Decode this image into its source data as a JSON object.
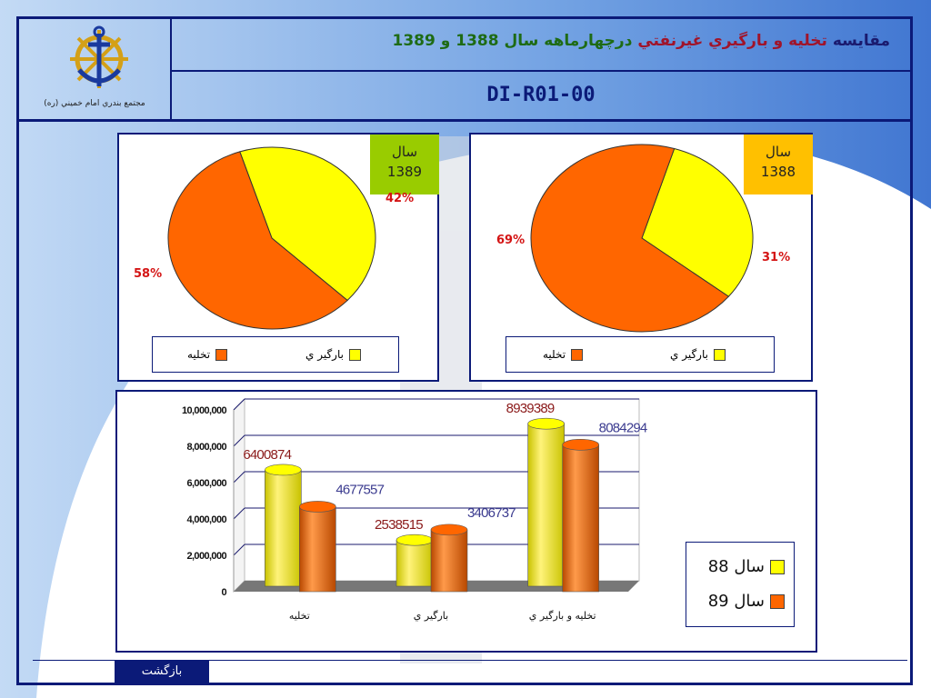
{
  "header": {
    "title_part1": "مقايسه",
    "title_part2": "تخليه و بارگيري غيرنفتي",
    "title_part3": "درچهارماهه سال 1388 و 1389",
    "doc_code": "DI-R01-00",
    "organization": "مجتمع بندري امام خميني (ره)",
    "logo_icon": "anchor-ship-wheel-icon"
  },
  "colors": {
    "frame": "#0b1a78",
    "takhlie": "#ff6600",
    "bargiri": "#ffff00",
    "badge_1389": "#99cc00",
    "badge_1388": "#ffc000",
    "pct_label": "#d41414",
    "bar_label_red": "#8b1a1a",
    "bar_label_blue": "#3b3b8f"
  },
  "pies": [
    {
      "year_label": "سال",
      "year": "1389",
      "legend": [
        "تخليه",
        "بارگير ي"
      ]
    },
    {
      "year_label": "سال",
      "year": "1388",
      "legend": [
        "تخليه",
        "بارگير ي"
      ]
    }
  ],
  "bar_legend": [
    "سال 88",
    "سال 89"
  ],
  "back_button": "بازگشت",
  "chart_data": [
    {
      "type": "pie",
      "categories": [
        "تخليه",
        "بارگيري"
      ],
      "values": [
        58,
        42
      ],
      "labels": [
        "58%",
        "42%"
      ],
      "legend": [
        "تخليه",
        "بارگير ي"
      ],
      "annotation": "سال 1389"
    },
    {
      "type": "pie",
      "categories": [
        "تخليه",
        "بارگيري"
      ],
      "values": [
        69,
        31
      ],
      "labels": [
        "69%",
        "31%"
      ],
      "legend": [
        "تخليه",
        "بارگير ي"
      ],
      "annotation": "سال 1388"
    },
    {
      "type": "bar",
      "categories": [
        "تخليه",
        "بارگير ي",
        "تخليه و بارگير ي"
      ],
      "series": [
        {
          "name": "سال 88",
          "values": [
            6400874,
            2538515,
            8939389
          ],
          "labels": [
            "6400874",
            "2538515",
            "8939389"
          ]
        },
        {
          "name": "سال 89",
          "values": [
            4677557,
            3406737,
            8084294
          ],
          "labels": [
            "4677557",
            "3406737",
            "8084294"
          ]
        }
      ],
      "ylim": [
        0,
        10000000
      ],
      "yticks": [
        "0",
        "2,000,000",
        "4,000,000",
        "6,000,000",
        "8,000,000",
        "10,000,000"
      ],
      "grid": true,
      "legend_position": "right"
    }
  ]
}
